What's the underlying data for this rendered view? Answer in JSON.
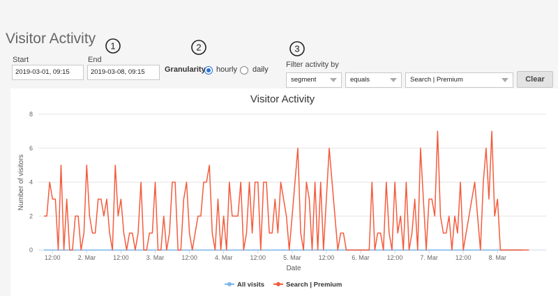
{
  "page": {
    "title": "Visitor Activity"
  },
  "steps": [
    "1",
    "2",
    "3"
  ],
  "date_range": {
    "start_label": "Start",
    "start_value": "2019-03-01, 09:15",
    "end_label": "End",
    "end_value": "2019-03-08, 09:15"
  },
  "granularity": {
    "label": "Granularity",
    "options": [
      {
        "label": "hourly",
        "selected": true
      },
      {
        "label": "daily",
        "selected": false
      }
    ]
  },
  "filter": {
    "label": "Filter activity by",
    "field_value": "segment",
    "operator_value": "equals",
    "segment_value": "Search | Premium",
    "clear_label": "Clear"
  },
  "chart_data": {
    "type": "line",
    "title": "Visitor Activity",
    "xlabel": "Date",
    "ylabel": "Number of visitors",
    "ylim": [
      0,
      8
    ],
    "yticks": [
      "0",
      "2",
      "4",
      "6",
      "8"
    ],
    "xtick_labels": [
      "12:00",
      "2. Mar",
      "12:00",
      "3. Mar",
      "12:00",
      "4. Mar",
      "12:00",
      "5. Mar",
      "12:00",
      "6. Mar",
      "12:00",
      "7. Mar",
      "12:00",
      "8. Mar"
    ],
    "x_start": "2019-03-01, 09:00",
    "x_step": "1 hour",
    "grid": "horizontal",
    "legend_position": "bottom-center",
    "series": [
      {
        "name": "All visits",
        "color": "#7cb5ec",
        "values": [
          0,
          0,
          0,
          0,
          0,
          0,
          0,
          0,
          0,
          0,
          0,
          0,
          0,
          0,
          0,
          0,
          0,
          0,
          0,
          0,
          0,
          0,
          0,
          0,
          0,
          0,
          0,
          0,
          0,
          0,
          0,
          0,
          0,
          0,
          0,
          0,
          0,
          0,
          0,
          0,
          0,
          0,
          0,
          0,
          0,
          0,
          0,
          0,
          0,
          0,
          0,
          0,
          0,
          0,
          0,
          0,
          0,
          0,
          0,
          0,
          0,
          0,
          0,
          0,
          0,
          0,
          0,
          0,
          0,
          0,
          0,
          0,
          0,
          0,
          0,
          0,
          0,
          0,
          0,
          0,
          0,
          0,
          0,
          0,
          0,
          0,
          0,
          0,
          0,
          0,
          0,
          0,
          0,
          0,
          0,
          0,
          0,
          0,
          0,
          0,
          0,
          0,
          0,
          0,
          0,
          0,
          0,
          0,
          0,
          0,
          0,
          0,
          0,
          0,
          0,
          0,
          0,
          0,
          0,
          0,
          0,
          0,
          0,
          0,
          0,
          0,
          0,
          0,
          0,
          0,
          0,
          0,
          0,
          0,
          0,
          0,
          0,
          0,
          0,
          0,
          0,
          0,
          0,
          0,
          0,
          0,
          0,
          0,
          0,
          0,
          0,
          0,
          0,
          0,
          0,
          0,
          0,
          0,
          0,
          0,
          0,
          0,
          0,
          0,
          0,
          0,
          0,
          0,
          0
        ]
      },
      {
        "name": "Search | Premium",
        "color": "#f45b3c",
        "values": [
          2,
          2,
          4,
          3,
          3,
          0,
          5,
          0,
          3,
          0,
          0,
          2,
          2,
          0,
          1,
          5,
          2,
          1,
          1,
          3,
          3,
          2,
          3,
          1,
          0,
          5,
          2,
          3,
          1,
          0,
          1,
          1,
          0,
          1,
          4,
          0,
          0,
          1,
          1,
          4,
          0,
          0,
          2,
          0,
          1,
          4,
          4,
          0,
          0,
          3,
          4,
          1,
          0,
          1,
          2,
          2,
          4,
          4,
          5,
          1,
          0,
          3,
          0,
          2,
          0,
          4,
          2,
          2,
          2,
          4,
          0,
          1,
          4,
          1,
          4,
          4,
          0,
          4,
          4,
          1,
          1,
          3,
          1,
          4,
          3,
          2,
          0,
          2,
          4,
          6,
          1,
          0,
          4,
          3,
          0,
          4,
          0,
          4,
          0,
          3,
          6,
          4,
          2,
          0,
          1,
          1,
          0,
          0,
          0,
          0,
          0,
          0,
          0,
          0,
          0,
          4,
          0,
          1,
          1,
          0,
          4,
          1,
          0,
          4,
          1,
          2,
          0,
          4,
          0,
          1,
          3,
          0,
          6,
          3,
          0,
          3,
          3,
          2,
          7,
          2,
          1,
          1,
          2,
          0,
          2,
          1,
          4,
          0,
          1,
          2,
          3,
          4,
          2,
          0,
          4,
          6,
          3,
          7,
          2,
          3,
          0,
          0,
          0,
          0,
          0,
          0,
          0,
          0,
          0,
          0,
          0
        ]
      }
    ]
  }
}
